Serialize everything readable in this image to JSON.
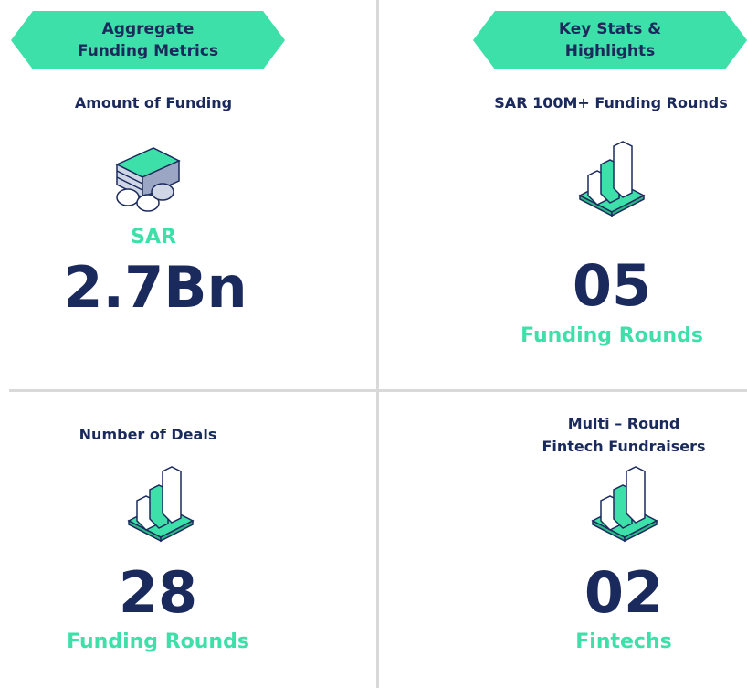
{
  "banners": [
    "Aggregate Funding Metrics",
    "Key Stats & Highlights"
  ],
  "cells": [
    {
      "label": "Amount of Funding",
      "prefix": "SAR",
      "value": "2.7Bn"
    },
    {
      "label": "SAR 100M+ Funding Rounds",
      "value": "05",
      "unit": "Funding Rounds"
    },
    {
      "label": "Number of Deals",
      "value": "28",
      "unit": "Funding Rounds"
    },
    {
      "label_lines": [
        "Multi – Round",
        "Fintech Fundraisers"
      ],
      "value": "02",
      "unit": "Fintechs"
    }
  ]
}
